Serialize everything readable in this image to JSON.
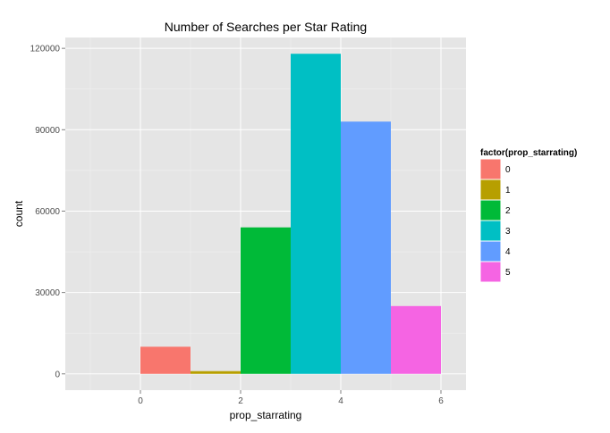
{
  "chart_data": {
    "type": "bar",
    "title": "Number of Searches per Star Rating",
    "xlabel": "prop_starrating",
    "ylabel": "count",
    "xlim": [
      -1.5,
      6.5
    ],
    "ylim": [
      -6000,
      124000
    ],
    "x_ticks": [
      0,
      2,
      4,
      6
    ],
    "y_ticks": [
      0,
      30000,
      60000,
      90000,
      120000
    ],
    "x_tick_labels": [
      "0",
      "2",
      "4",
      "6"
    ],
    "y_tick_labels": [
      "0",
      "30000",
      "60000",
      "90000",
      "120000"
    ],
    "grid": true,
    "bar_width": 1,
    "bars": [
      {
        "x": 0.5,
        "value": 10000,
        "category": "0",
        "color": "#F8766D"
      },
      {
        "x": 1.5,
        "value": 1000,
        "category": "1",
        "color": "#B79F00"
      },
      {
        "x": 2.5,
        "value": 54000,
        "category": "2",
        "color": "#00BA38"
      },
      {
        "x": 3.5,
        "value": 118000,
        "category": "3",
        "color": "#00BFC4"
      },
      {
        "x": 4.5,
        "value": 93000,
        "category": "4",
        "color": "#619CFF"
      },
      {
        "x": 5.5,
        "value": 25000,
        "category": "5",
        "color": "#F564E3"
      }
    ],
    "legend": {
      "title": "factor(prop_starrating)",
      "placement": "right",
      "items": [
        {
          "label": "0",
          "color": "#F8766D"
        },
        {
          "label": "1",
          "color": "#B79F00"
        },
        {
          "label": "2",
          "color": "#00BA38"
        },
        {
          "label": "3",
          "color": "#00BFC4"
        },
        {
          "label": "4",
          "color": "#619CFF"
        },
        {
          "label": "5",
          "color": "#F564E3"
        }
      ]
    },
    "colors": {
      "panel_background": "#E5E5E5",
      "grid_major": "#FFFFFF",
      "grid_minor": "#F2F2F2"
    }
  }
}
